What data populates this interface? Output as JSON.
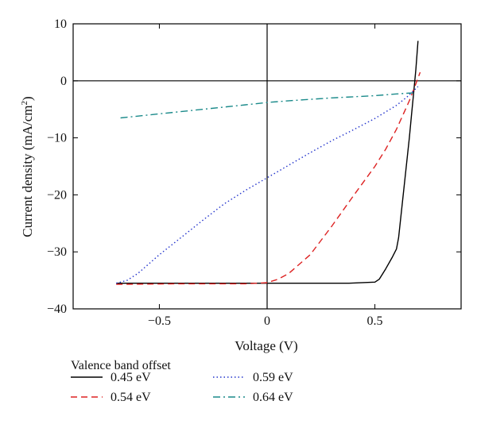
{
  "chart_data": {
    "type": "line",
    "xlabel": "Voltage (V)",
    "ylabel_main": "Current density (mA/cm",
    "ylabel_sup": "2",
    "ylabel_end": ")",
    "xlim": [
      -0.9,
      0.9
    ],
    "ylim": [
      -40,
      10
    ],
    "xticks": [
      {
        "value": -0.5,
        "label": "−0.5"
      },
      {
        "value": 0,
        "label": "0"
      },
      {
        "value": 0.5,
        "label": "0.5"
      }
    ],
    "yticks": [
      {
        "value": -40,
        "label": "−40"
      },
      {
        "value": -30,
        "label": "−30"
      },
      {
        "value": -20,
        "label": "−20"
      },
      {
        "value": -10,
        "label": "−10"
      },
      {
        "value": 0,
        "label": "0"
      },
      {
        "value": 10,
        "label": "10"
      }
    ],
    "zero_lines": true,
    "legend_title": "Valence band offset",
    "series": [
      {
        "name": "0.45 eV",
        "color": "#000000",
        "dash": "solid",
        "x": [
          -0.7,
          -0.4,
          0.0,
          0.38,
          0.5,
          0.52,
          0.55,
          0.58,
          0.6,
          0.61,
          0.62,
          0.64,
          0.66,
          0.67,
          0.68,
          0.69,
          0.7
        ],
        "y": [
          -35.5,
          -35.5,
          -35.5,
          -35.5,
          -35.3,
          -34.8,
          -33.0,
          -31.0,
          -29.5,
          -27.5,
          -24.0,
          -17.0,
          -10.0,
          -6.0,
          -2.0,
          2.0,
          7.0
        ]
      },
      {
        "name": "0.54 eV",
        "color": "#dd2222",
        "dash": "dashed",
        "x": [
          -0.7,
          -0.4,
          -0.1,
          0.0,
          0.05,
          0.1,
          0.2,
          0.3,
          0.4,
          0.5,
          0.55,
          0.6,
          0.63,
          0.66,
          0.68,
          0.7,
          0.71
        ],
        "y": [
          -35.7,
          -35.6,
          -35.6,
          -35.4,
          -34.8,
          -33.8,
          -30.5,
          -25.5,
          -20.2,
          -15.0,
          -12.0,
          -8.5,
          -6.0,
          -3.5,
          -1.5,
          0.5,
          1.5
        ]
      },
      {
        "name": "0.59 eV",
        "color": "#2233cc",
        "dash": "dotted",
        "x": [
          -0.7,
          -0.65,
          -0.6,
          -0.5,
          -0.4,
          -0.3,
          -0.2,
          -0.1,
          0.0,
          0.1,
          0.2,
          0.3,
          0.4,
          0.5,
          0.6,
          0.65,
          0.7
        ],
        "y": [
          -35.5,
          -35.0,
          -33.8,
          -30.5,
          -27.5,
          -24.5,
          -21.6,
          -19.2,
          -17.0,
          -14.8,
          -12.6,
          -10.5,
          -8.6,
          -6.6,
          -4.3,
          -2.8,
          -1.0
        ]
      },
      {
        "name": "0.64 eV",
        "color": "#1a8a8a",
        "dash": "dashdot",
        "x": [
          -0.68,
          -0.5,
          -0.3,
          -0.1,
          0.0,
          0.1,
          0.3,
          0.5,
          0.6,
          0.68
        ],
        "y": [
          -6.5,
          -5.8,
          -5.0,
          -4.2,
          -3.8,
          -3.5,
          -3.0,
          -2.6,
          -2.3,
          -2.1
        ]
      }
    ]
  }
}
